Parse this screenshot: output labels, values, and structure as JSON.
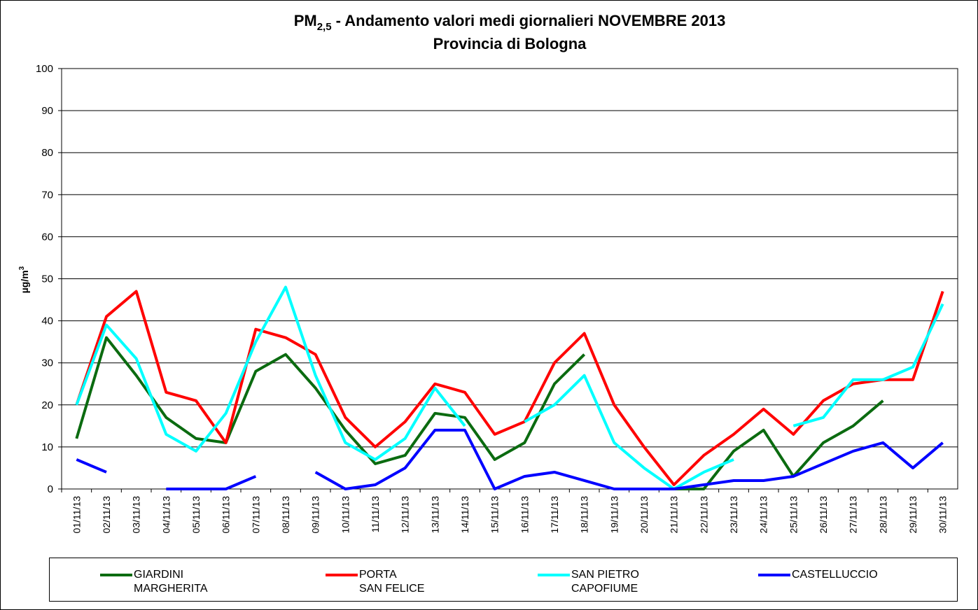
{
  "chart_data": {
    "type": "line",
    "title_main": "PM",
    "title_sub": "2,5",
    "title_rest": " - Andamento valori medi giornalieri NOVEMBRE 2013",
    "subtitle": "Provincia di Bologna",
    "ylabel": "µg/m",
    "ylabel_sup": "3",
    "categories": [
      "01/11/13",
      "02/11/13",
      "03/11/13",
      "04/11/13",
      "05/11/13",
      "06/11/13",
      "07/11/13",
      "08/11/13",
      "09/11/13",
      "10/11/13",
      "11/11/13",
      "12/11/13",
      "13/11/13",
      "14/11/13",
      "15/11/13",
      "16/11/13",
      "17/11/13",
      "18/11/13",
      "19/11/13",
      "20/11/13",
      "21/11/13",
      "22/11/13",
      "23/11/13",
      "24/11/13",
      "25/11/13",
      "26/11/13",
      "27/11/13",
      "28/11/13",
      "29/11/13",
      "30/11/13"
    ],
    "series": [
      {
        "name": "GIARDINI\nMARGHERITA",
        "color": "#0b6b10",
        "values": [
          12,
          36,
          27,
          17,
          12,
          11,
          28,
          32,
          24,
          14,
          6,
          8,
          18,
          17,
          7,
          11,
          25,
          32,
          null,
          null,
          0,
          0,
          9,
          14,
          3,
          11,
          15,
          21,
          null,
          null
        ]
      },
      {
        "name": "PORTA\nSAN FELICE",
        "color": "#ff0000",
        "values": [
          20,
          41,
          47,
          23,
          21,
          11,
          38,
          36,
          32,
          17,
          10,
          16,
          25,
          23,
          13,
          16,
          30,
          37,
          20,
          10,
          1,
          8,
          13,
          19,
          13,
          21,
          25,
          26,
          26,
          47
        ]
      },
      {
        "name": "SAN PIETRO\nCAPOFIUME",
        "color": "#00ffff",
        "values": [
          20,
          39,
          31,
          13,
          9,
          18,
          35,
          48,
          27,
          11,
          7,
          12,
          24,
          15,
          null,
          16,
          20,
          27,
          11,
          5,
          0,
          4,
          7,
          null,
          15,
          17,
          26,
          26,
          29,
          44
        ]
      },
      {
        "name": "CASTELLUCCIO",
        "color": "#0000ff",
        "values": [
          7,
          4,
          null,
          0,
          0,
          0,
          3,
          null,
          4,
          0,
          1,
          5,
          14,
          14,
          0,
          3,
          4,
          2,
          0,
          0,
          0,
          1,
          2,
          2,
          3,
          6,
          9,
          11,
          5,
          11
        ]
      }
    ],
    "ylim": [
      0,
      100
    ],
    "yticks": [
      0,
      10,
      20,
      30,
      40,
      50,
      60,
      70,
      80,
      90,
      100
    ],
    "grid": true
  }
}
